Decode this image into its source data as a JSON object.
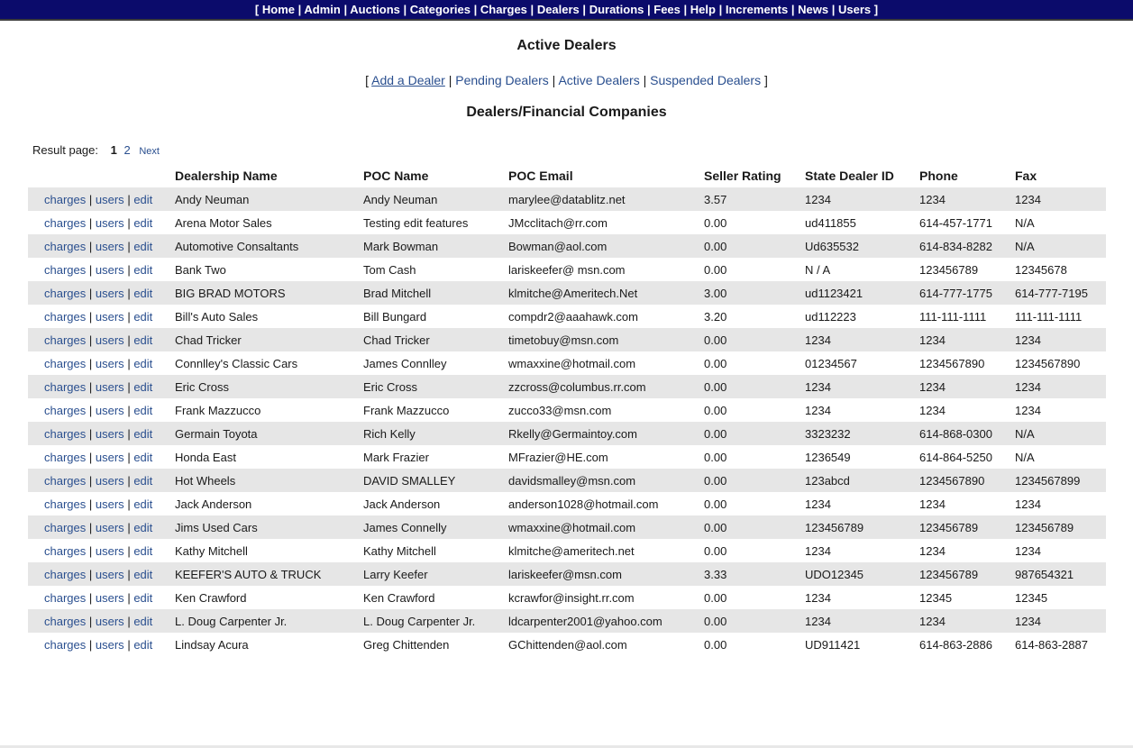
{
  "topnav": {
    "open_bracket": "[",
    "close_bracket": "]",
    "separator": "|",
    "items": [
      "Home",
      "Admin",
      "Auctions",
      "Categories",
      "Charges",
      "Dealers",
      "Durations",
      "Fees",
      "Help",
      "Increments",
      "News",
      "Users"
    ]
  },
  "page_title": "Active Dealers",
  "subnav": {
    "open_bracket": "[",
    "close_bracket": "]",
    "separator": "|",
    "add_dealer": "Add a Dealer",
    "pending": "Pending Dealers",
    "active": "Active Dealers",
    "suspended": "Suspended Dealers"
  },
  "section_title": "Dealers/Financial Companies",
  "pager": {
    "label": "Result page:",
    "current": "1",
    "page2": "2",
    "next": "Next"
  },
  "table": {
    "headers": [
      "",
      "Dealership Name",
      "POC Name",
      "POC Email",
      "Seller Rating",
      "State Dealer ID",
      "Phone",
      "Fax"
    ],
    "actions": {
      "charges": "charges",
      "users": "users",
      "edit": "edit",
      "separator": "|"
    },
    "rows": [
      {
        "name": "Andy Neuman",
        "poc": "Andy Neuman",
        "email": "marylee@datablitz.net",
        "rating": "3.57",
        "state_id": "1234",
        "phone": "1234",
        "fax": "1234"
      },
      {
        "name": "Arena Motor Sales",
        "poc": "Testing edit features",
        "email": "JMcclitach@rr.com",
        "rating": "0.00",
        "state_id": "ud411855",
        "phone": "614-457-1771",
        "fax": "N/A"
      },
      {
        "name": "Automotive Consaltants",
        "poc": "Mark Bowman",
        "email": "Bowman@aol.com",
        "rating": "0.00",
        "state_id": "Ud635532",
        "phone": "614-834-8282",
        "fax": "N/A"
      },
      {
        "name": "Bank Two",
        "poc": "Tom Cash",
        "email": "lariskeefer@ msn.com",
        "rating": "0.00",
        "state_id": "N / A",
        "phone": "123456789",
        "fax": "12345678"
      },
      {
        "name": "BIG BRAD MOTORS",
        "poc": "Brad Mitchell",
        "email": "klmitche@Ameritech.Net",
        "rating": "3.00",
        "state_id": "ud1123421",
        "phone": "614-777-1775",
        "fax": "614-777-7195"
      },
      {
        "name": "Bill's Auto Sales",
        "poc": "Bill Bungard",
        "email": "compdr2@aaahawk.com",
        "rating": "3.20",
        "state_id": "ud112223",
        "phone": "111-111-1111",
        "fax": "111-111-1111"
      },
      {
        "name": "Chad Tricker",
        "poc": "Chad Tricker",
        "email": "timetobuy@msn.com",
        "rating": "0.00",
        "state_id": "1234",
        "phone": "1234",
        "fax": "1234"
      },
      {
        "name": "Connlley's Classic Cars",
        "poc": "James Connlley",
        "email": "wmaxxine@hotmail.com",
        "rating": "0.00",
        "state_id": "01234567",
        "phone": "1234567890",
        "fax": "1234567890"
      },
      {
        "name": "Eric Cross",
        "poc": "Eric Cross",
        "email": "zzcross@columbus.rr.com",
        "rating": "0.00",
        "state_id": "1234",
        "phone": "1234",
        "fax": "1234"
      },
      {
        "name": "Frank Mazzucco",
        "poc": "Frank Mazzucco",
        "email": "zucco33@msn.com",
        "rating": "0.00",
        "state_id": "1234",
        "phone": "1234",
        "fax": "1234"
      },
      {
        "name": "Germain Toyota",
        "poc": "Rich Kelly",
        "email": "Rkelly@Germaintoy.com",
        "rating": "0.00",
        "state_id": "3323232",
        "phone": "614-868-0300",
        "fax": "N/A"
      },
      {
        "name": "Honda East",
        "poc": "Mark Frazier",
        "email": "MFrazier@HE.com",
        "rating": "0.00",
        "state_id": "1236549",
        "phone": "614-864-5250",
        "fax": "N/A"
      },
      {
        "name": "Hot Wheels",
        "poc": "DAVID SMALLEY",
        "email": "davidsmalley@msn.com",
        "rating": "0.00",
        "state_id": "123abcd",
        "phone": "1234567890",
        "fax": "1234567899"
      },
      {
        "name": "Jack Anderson",
        "poc": "Jack Anderson",
        "email": "anderson1028@hotmail.com",
        "rating": "0.00",
        "state_id": "1234",
        "phone": "1234",
        "fax": "1234"
      },
      {
        "name": "Jims Used Cars",
        "poc": "James Connelly",
        "email": "wmaxxine@hotmail.com",
        "rating": "0.00",
        "state_id": "123456789",
        "phone": "123456789",
        "fax": "123456789"
      },
      {
        "name": "Kathy Mitchell",
        "poc": "Kathy Mitchell",
        "email": "klmitche@ameritech.net",
        "rating": "0.00",
        "state_id": "1234",
        "phone": "1234",
        "fax": "1234"
      },
      {
        "name": "KEEFER'S AUTO & TRUCK",
        "poc": "Larry Keefer",
        "email": "lariskeefer@msn.com",
        "rating": "3.33",
        "state_id": "UDO12345",
        "phone": "123456789",
        "fax": "987654321"
      },
      {
        "name": "Ken Crawford",
        "poc": "Ken Crawford",
        "email": "kcrawfor@insight.rr.com",
        "rating": "0.00",
        "state_id": "1234",
        "phone": "12345",
        "fax": "12345"
      },
      {
        "name": "L. Doug Carpenter Jr.",
        "poc": "L. Doug Carpenter Jr.",
        "email": "ldcarpenter2001@yahoo.com",
        "rating": "0.00",
        "state_id": "1234",
        "phone": "1234",
        "fax": "1234"
      },
      {
        "name": "Lindsay Acura",
        "poc": "Greg Chittenden",
        "email": "GChittenden@aol.com",
        "rating": "0.00",
        "state_id": "UD911421",
        "phone": "614-863-2886",
        "fax": "614-863-2887"
      }
    ]
  },
  "colors": {
    "nav_bg": "#0b0b6b",
    "link": "#2a4f8f",
    "row_shade": "#e6e6e6"
  }
}
